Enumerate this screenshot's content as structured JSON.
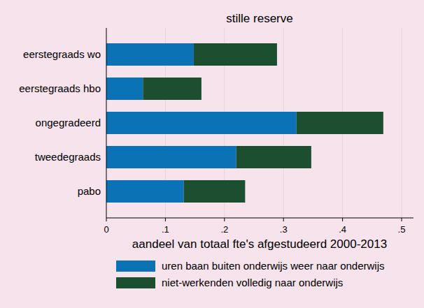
{
  "chart_data": {
    "type": "bar",
    "orientation": "horizontal",
    "stacked": true,
    "title": "stille reserve",
    "x_label": "aandeel van totaal fte's afgestudeerd 2000-2013",
    "categories": [
      "eerstegraads wo",
      "eerstegraads hbo",
      "ongegradeerd",
      "tweedegraads",
      "pabo"
    ],
    "series": [
      {
        "name": "uren baan buiten onderwijs weer naar onderwijs",
        "color": "#0b72b6",
        "values": [
          0.148,
          0.062,
          0.322,
          0.22,
          0.131
        ]
      },
      {
        "name": "niet-werkenden volledig naar onderwijs",
        "color": "#1c4e30",
        "values": [
          0.141,
          0.099,
          0.147,
          0.127,
          0.104
        ]
      }
    ],
    "xlim": [
      0,
      0.52
    ],
    "xticks": [
      0,
      {
        "value": 0.1,
        "label": ".1"
      },
      {
        "value": 0.2,
        "label": ".2"
      },
      {
        "value": 0.3,
        "label": ".3"
      },
      {
        "value": 0.4,
        "label": ".4"
      },
      {
        "value": 0.5,
        "label": ".5"
      }
    ],
    "grid": true,
    "legend": "bottom"
  }
}
